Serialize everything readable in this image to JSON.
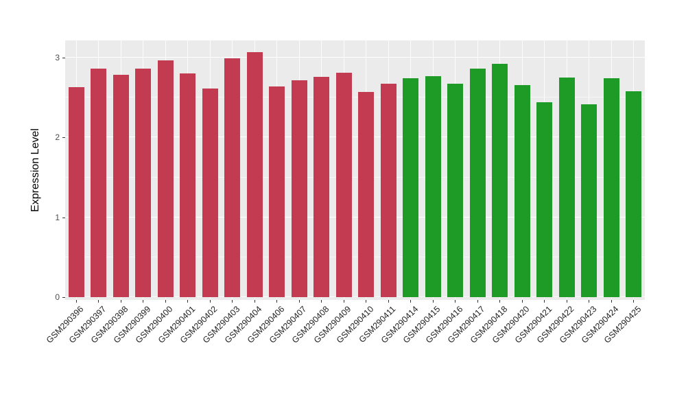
{
  "chart_data": {
    "type": "bar",
    "title": "",
    "xlabel": "",
    "ylabel": "Expression Level",
    "ylim": [
      0,
      3.2
    ],
    "yticks": [
      0,
      1,
      2,
      3
    ],
    "minor_gridlines": [
      0.5,
      1.5,
      2.5
    ],
    "grid": true,
    "legend_position": "none",
    "panel_background": "#EBEBEB",
    "grid_color": "#FFFFFF",
    "categories": [
      "GSM290396",
      "GSM290397",
      "GSM290398",
      "GSM290399",
      "GSM290400",
      "GSM290401",
      "GSM290402",
      "GSM290403",
      "GSM290404",
      "GSM290406",
      "GSM290407",
      "GSM290408",
      "GSM290409",
      "GSM290410",
      "GSM290411",
      "GSM290414",
      "GSM290415",
      "GSM290416",
      "GSM290417",
      "GSM290418",
      "GSM290420",
      "GSM290421",
      "GSM290422",
      "GSM290423",
      "GSM290424",
      "GSM290425"
    ],
    "values": [
      2.63,
      2.86,
      2.79,
      2.86,
      2.97,
      2.8,
      2.61,
      2.99,
      3.07,
      2.64,
      2.72,
      2.76,
      2.81,
      2.57,
      2.67,
      2.74,
      2.77,
      2.67,
      2.86,
      2.92,
      2.66,
      2.44,
      2.75,
      2.42,
      2.74,
      2.58
    ],
    "bar_colors": [
      "#C23B50",
      "#C23B50",
      "#C23B50",
      "#C23B50",
      "#C23B50",
      "#C23B50",
      "#C23B50",
      "#C23B50",
      "#C23B50",
      "#C23B50",
      "#C23B50",
      "#C23B50",
      "#C23B50",
      "#C23B50",
      "#C23B50",
      "#1E9B26",
      "#1E9B26",
      "#1E9B26",
      "#1E9B26",
      "#1E9B26",
      "#1E9B26",
      "#1E9B26",
      "#1E9B26",
      "#1E9B26",
      "#1E9B26",
      "#1E9B26"
    ],
    "group_colors": {
      "left_group": "#C23B50",
      "right_group": "#1E9B26"
    }
  }
}
